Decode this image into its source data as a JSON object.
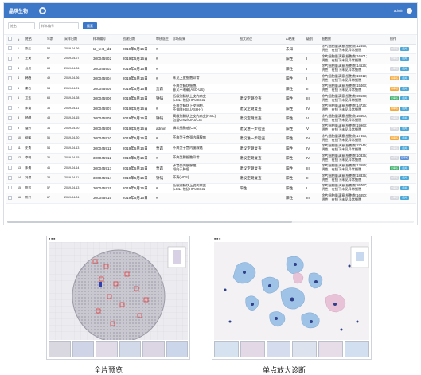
{
  "header": {
    "title": "晶琪生物",
    "user": "admin"
  },
  "filters": {
    "placeholder_1": "姓名",
    "placeholder_2": "样本编号",
    "search_label": "搜索"
  },
  "columns": [
    "",
    "#",
    "姓名",
    "年龄",
    "采样日期",
    "样本编号",
    "创建日期",
    "审核医生",
    "诊断结果",
    "图文建议",
    "AI结果",
    "级别",
    "细胞数",
    "操作"
  ],
  "rows": [
    {
      "no": "1",
      "name": "张三",
      "age": "53",
      "sample_date": "2019-04-26",
      "id": "IZ_test_id1",
      "created": "2019年5月16日",
      "doctor": "#",
      "result": "",
      "advice": "",
      "ai": "未知",
      "level": "",
      "cells": "涂片细胞量满意,细胞数:12656;\n阴性，在镜下未见异常细胞",
      "actions": [
        "gray",
        "teal"
      ]
    },
    {
      "no": "2",
      "name": "王美",
      "age": "67",
      "sample_date": "2019-04-27",
      "id": "300045902",
      "created": "2019年5月16日",
      "doctor": "#",
      "result": "",
      "advice": "",
      "ai": "阳性",
      "level": "I",
      "cells": "涂片细胞量满意,细胞数:16501;\n阴性，在镜下未见异常细胞",
      "actions": [
        "gray",
        "teal"
      ]
    },
    {
      "no": "3",
      "name": "龙汉",
      "age": "68",
      "sample_date": "2019-04-26",
      "id": "300045903",
      "created": "2019年5月16日",
      "doctor": "#",
      "result": "",
      "advice": "",
      "ai": "阳性",
      "level": "I",
      "cells": "涂片细胞量满意,细胞数:14626;\n阴性，在镜下未见异常细胞",
      "actions": [
        "gray",
        "teal"
      ]
    },
    {
      "no": "4",
      "name": "韩峰",
      "age": "49",
      "sample_date": "2019-04-26",
      "id": "300045904",
      "created": "2019年5月16日",
      "doctor": "#",
      "result": "未见上皮细胞异常",
      "advice": "",
      "ai": "阳性",
      "level": "I",
      "cells": "涂片细胞量满意,细胞数:19012;\n阴性，在镜下未见异常细胞",
      "actions": [
        "orange",
        "teal"
      ]
    },
    {
      "no": "5",
      "name": "秦五",
      "age": "54",
      "sample_date": "2019-04-21",
      "id": "300045905",
      "created": "2019年5月16日",
      "doctor": "贾森",
      "result": "不典型鳞状细胞,\n意义不明确(ASC-US)",
      "advice": "",
      "ai": "阳性",
      "level": "II",
      "cells": "涂片细胞量满意,细胞数:15463;\n阴性，在镜下未见异常细胞",
      "actions": [
        "orange",
        "teal"
      ]
    },
    {
      "no": "6",
      "name": "卫玉",
      "age": "63",
      "sample_date": "2019-04-28",
      "id": "300045906",
      "created": "2019年5月16日",
      "doctor": "钟韬",
      "result": "低级别鳞状上皮内病变\n(LSIL)  包括HPV/CIN1",
      "advice": "建议定期检查",
      "ai": "阳性",
      "level": "III",
      "cells": "涂片细胞量满意,细胞数:20563;\n阴性，在镜下未见异常细胞",
      "actions": [
        "green",
        "teal"
      ]
    },
    {
      "no": "7",
      "name": "朱南",
      "age": "36",
      "sample_date": "2019-04-11",
      "id": "300045907",
      "created": "2019年5月16日",
      "doctor": "#",
      "result": "不典型鳞状上皮细胞,\n不排除HSIL(ASH-H)",
      "advice": "建议定期复查",
      "ai": "阳性",
      "level": "IV",
      "cells": "涂片细胞量满意,细胞数:14726;\n阴性，在镜下未见异常细胞",
      "actions": [
        "orange",
        "teal"
      ]
    },
    {
      "no": "8",
      "name": "杨晴",
      "age": "48",
      "sample_date": "2019-04-15",
      "id": "300045908",
      "created": "2019年5月16日",
      "doctor": "钟韬",
      "result": "高级别鳞状上皮内病变(HSIL),\n包括CIN2/CIN3/CIS",
      "advice": "建议定期复查",
      "ai": "阳性",
      "level": "V",
      "cells": "涂片细胞量满意,细胞数:16660;\n阴性，在镜下未见异常细胞",
      "actions": [
        "gray",
        "teal"
      ]
    },
    {
      "no": "9",
      "name": "唐玲",
      "age": "34",
      "sample_date": "2019-04-20",
      "id": "300045909",
      "created": "2019年5月16日",
      "doctor": "admin",
      "result": "鳞状细胞癌(CIS)",
      "advice": "建议进一步检查",
      "ai": "阳性",
      "level": "V",
      "cells": "涂片细胞量满意,细胞数:19963;\n阴性，在镜下未见异常细胞",
      "actions": [
        "gray",
        "teal"
      ]
    },
    {
      "no": "10",
      "name": "柳溪",
      "age": "56",
      "sample_date": "2019-04-20",
      "id": "300045910",
      "created": "2019年5月16日",
      "doctor": "#",
      "result": "不典型子宫颈内膜腺癌",
      "advice": "建议进一步检查",
      "ai": "阳性",
      "level": "IV",
      "cells": "涂片细胞量满意,细胞数:17353;\n阴性，在镜下未见异常细胞",
      "actions": [
        "orange",
        "teal"
      ]
    },
    {
      "no": "11",
      "name": "史勇",
      "age": "54",
      "sample_date": "2019-04-13",
      "id": "300045911",
      "created": "2019年5月16日",
      "doctor": "贾森",
      "result": "不典型子宫内膜腺癌",
      "advice": "建议定期复查",
      "ai": "阳性",
      "level": "IV",
      "cells": "涂片细胞量满意,细胞数:27545;\n阴性，在镜下未见异常细胞",
      "actions": [
        "gray",
        "teal"
      ]
    },
    {
      "no": "12",
      "name": "李明",
      "age": "36",
      "sample_date": "2019-04-15",
      "id": "300045912",
      "created": "2019年5月16日",
      "doctor": "#",
      "result": "不典型腺细胞异常",
      "advice": "建议定期复查",
      "ai": "阳性",
      "level": "IV",
      "cells": "涂片细胞量满意,细胞数:10335;\n阴性，在镜下未见异常细胞",
      "actions": [
        "gray",
        "blue"
      ]
    },
    {
      "no": "13",
      "name": "朱倩",
      "age": "46",
      "sample_date": "2019-04-14",
      "id": "300045913",
      "created": "2019年5月16日",
      "doctor": "贾森",
      "result": "子宫颈内膜腺癌,\n倾向于肿瘤",
      "advice": "建议定期复查",
      "ai": "阳性",
      "level": "III",
      "cells": "涂片细胞量满意,细胞数:13686;\n阴性，在镜下未见异常细胞",
      "actions": [
        "green",
        "teal"
      ]
    },
    {
      "no": "14",
      "name": "冯蒙",
      "age": "33",
      "sample_date": "2019-04-11",
      "id": "300045914",
      "created": "2019年5月16日",
      "doctor": "钟韬",
      "result": "不清(NOS)",
      "advice": "建议定期复查",
      "ai": "阳性",
      "level": "II",
      "cells": "涂片细胞量满意,细胞数:18335;\n阴性，在镜下未见异常细胞",
      "actions": [
        "gray",
        "teal"
      ]
    },
    {
      "no": "15",
      "name": "陈芳",
      "age": "57",
      "sample_date": "2019-04-13",
      "id": "300045915",
      "created": "2019年5月16日",
      "doctor": "#",
      "result": "低级别鳞状上皮内病变\n(LSIL)  包括HPV/CIN1",
      "advice": "阳性",
      "ai": "阳性",
      "level": "I",
      "cells": "涂片细胞量满意,细胞数:26767;\n阴性，在镜下未见异常细胞",
      "actions": [
        "gray",
        "teal"
      ]
    },
    {
      "no": "16",
      "name": "陈开",
      "age": "67",
      "sample_date": "2019-04-24",
      "id": "300045915",
      "created": "2019年5月16日",
      "doctor": "#",
      "result": "",
      "advice": "",
      "ai": "阳性",
      "level": "III",
      "cells": "涂片细胞量满意,细胞数:16850;\n阴性，在镜下未见异常细胞",
      "actions": [
        "gray",
        "teal"
      ]
    }
  ],
  "action_labels": {
    "gray": "未审核",
    "orange": "待审核",
    "blue": "已审核",
    "green": "已审核",
    "teal": "阅片"
  },
  "colors": {
    "header_bg": "#3d78c8",
    "action_gray": "#d4d7dd",
    "action_orange": "#f4a93a",
    "action_green": "#3bb06a",
    "action_teal": "#4aa8d8"
  },
  "captions": {
    "left": "全片预览",
    "right": "单点放大诊断"
  }
}
